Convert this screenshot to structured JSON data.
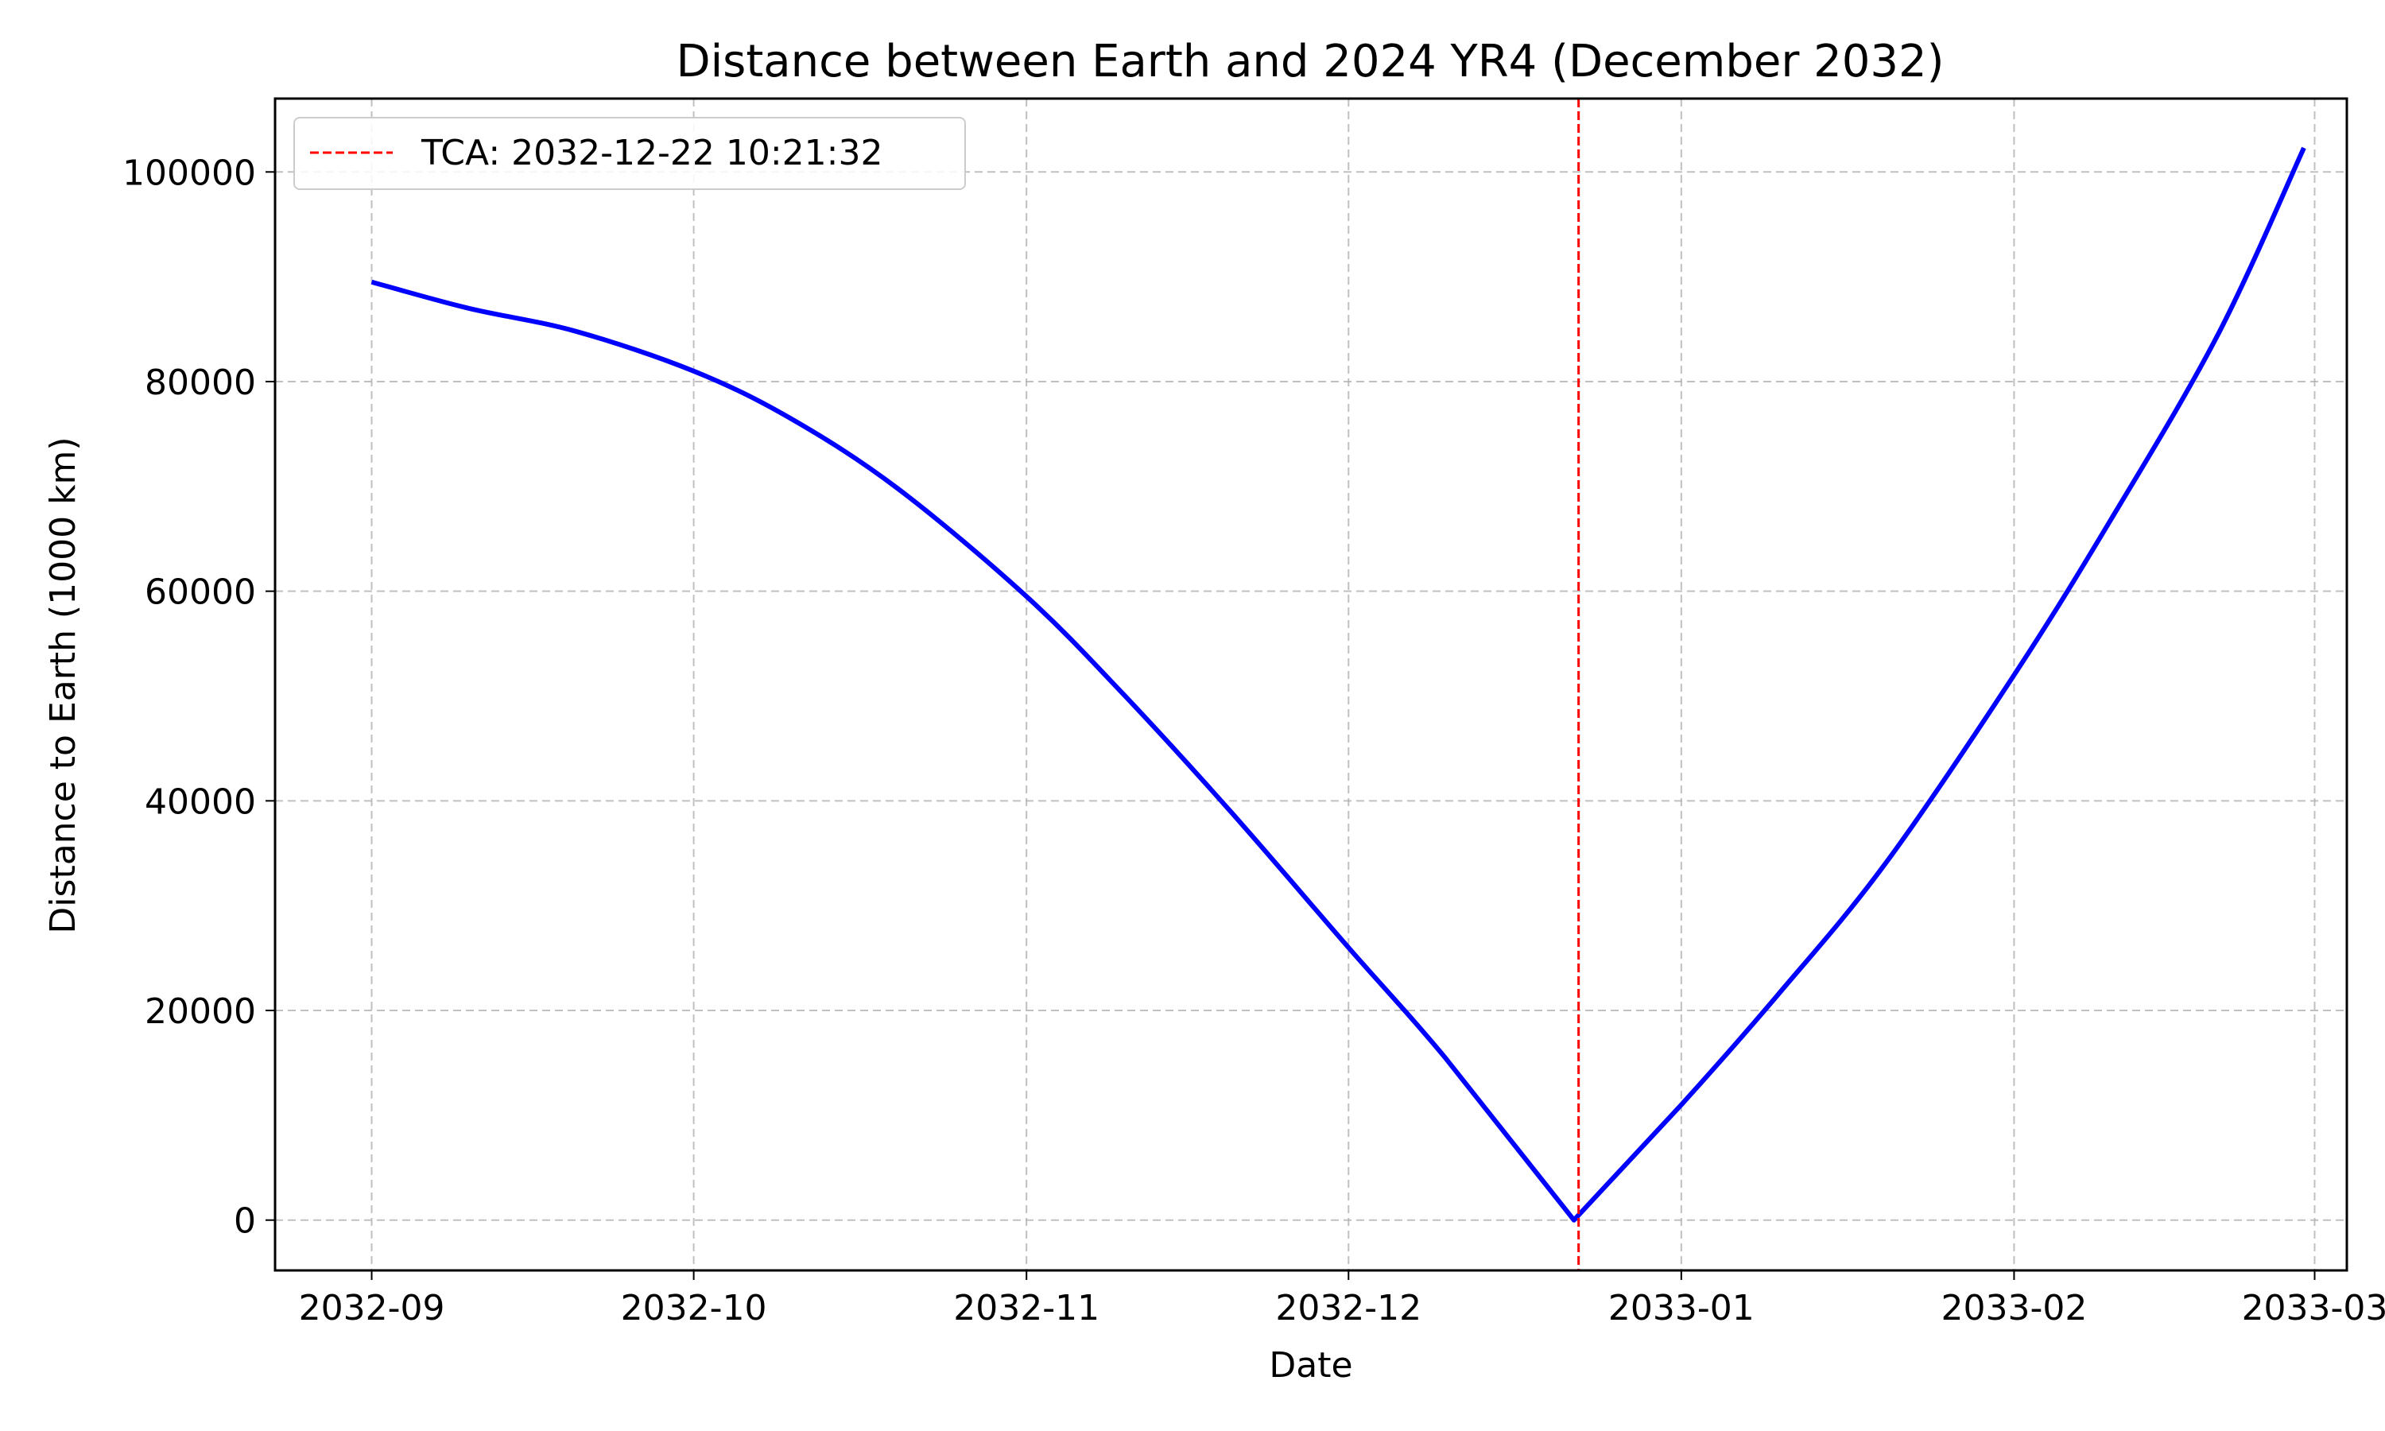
{
  "chart_data": {
    "type": "line",
    "title": "Distance between Earth and 2024 YR4 (December 2032)",
    "xlabel": "Date",
    "ylabel": "Distance to Earth (1000 km)",
    "x_type": "date",
    "xlim": [
      "2032-08-23",
      "2033-03-04"
    ],
    "ylim": [
      -4800,
      107000
    ],
    "x_ticks": [
      "2032-09",
      "2032-10",
      "2032-11",
      "2032-12",
      "2033-01",
      "2033-02",
      "2033-03"
    ],
    "x_tick_dates": [
      "2032-09-01",
      "2032-10-01",
      "2032-11-01",
      "2032-12-01",
      "2033-01-01",
      "2033-02-01",
      "2033-03-01"
    ],
    "y_ticks": [
      0,
      20000,
      40000,
      60000,
      80000,
      100000
    ],
    "grid": true,
    "legend_position": "top-left",
    "series": [
      {
        "color": "#0000ff",
        "x": [
          "2032-09-01",
          "2032-09-10",
          "2032-09-20",
          "2032-10-01",
          "2032-10-10",
          "2032-10-20",
          "2032-11-01",
          "2032-11-10",
          "2032-11-20",
          "2032-12-01",
          "2032-12-10",
          "2032-12-22",
          "2033-01-01",
          "2033-01-10",
          "2033-01-20",
          "2033-02-01",
          "2033-02-10",
          "2033-02-20",
          "2033-02-28"
        ],
        "y": [
          89500,
          87000,
          84800,
          81000,
          76500,
          69800,
          59500,
          50200,
          39000,
          26000,
          15500,
          0,
          11000,
          21500,
          34000,
          52000,
          66800,
          84500,
          102300
        ]
      }
    ],
    "vlines": [
      {
        "x": "2032-12-22T10:21:32",
        "color": "#ff0000",
        "style": "dashed",
        "label": "TCA: 2032-12-22 10:21:32"
      }
    ]
  }
}
